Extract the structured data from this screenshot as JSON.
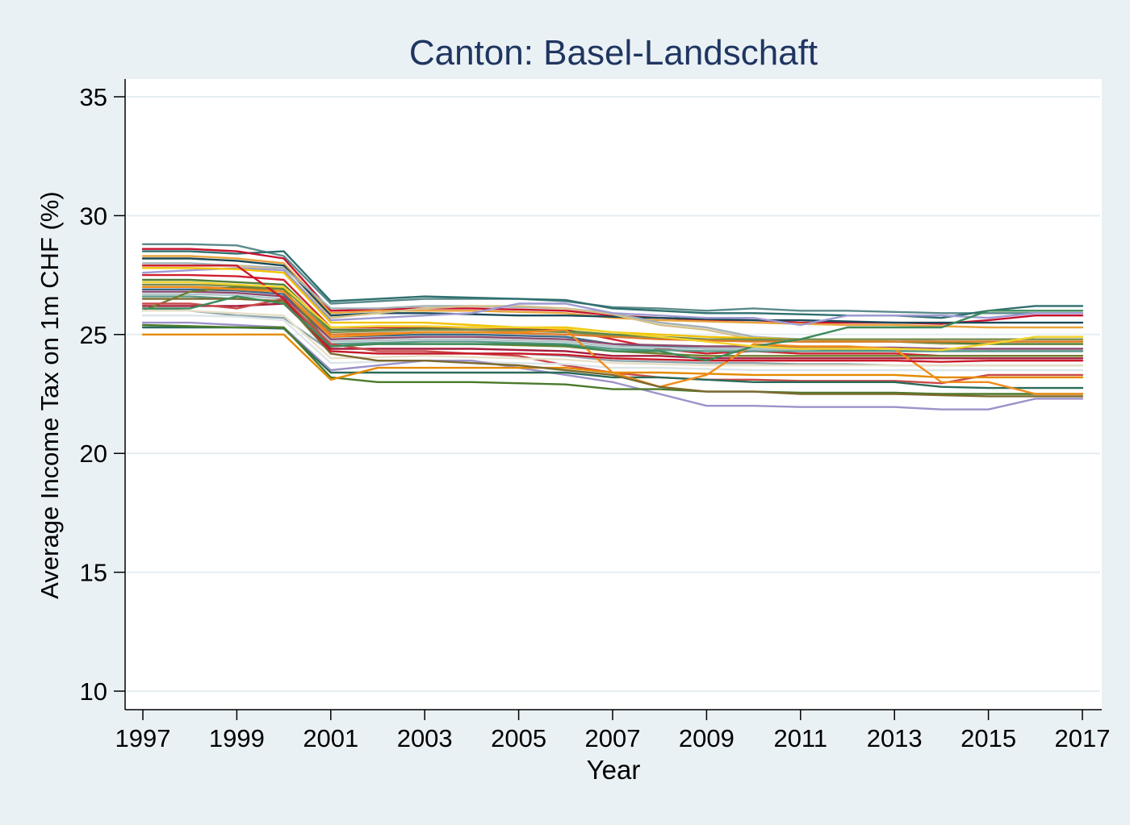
{
  "chart_data": {
    "type": "line",
    "title": "Canton: Basel-Landschaft",
    "xlabel": "Year",
    "ylabel": "Average Income Tax on 1m CHF (%)",
    "xlim": [
      1997,
      2017
    ],
    "ylim": [
      10,
      35
    ],
    "x_ticks": [
      "1997",
      "1999",
      "2001",
      "2003",
      "2005",
      "2007",
      "2009",
      "2011",
      "2013",
      "2015",
      "2017"
    ],
    "y_ticks": [
      "10",
      "15",
      "20",
      "25",
      "30",
      "35"
    ],
    "grid": true,
    "legend": "none",
    "x": [
      1997,
      1998,
      1999,
      2000,
      2001,
      2002,
      2003,
      2004,
      2005,
      2006,
      2007,
      2008,
      2009,
      2010,
      2011,
      2012,
      2013,
      2014,
      2015,
      2016,
      2017
    ],
    "series": [
      {
        "color": "#5b8a8a",
        "values": [
          28.8,
          28.8,
          28.75,
          28.3,
          26.3,
          26.4,
          26.5,
          26.5,
          26.5,
          26.4,
          26.15,
          26.1,
          26.0,
          26.1,
          26.0,
          26.0,
          25.95,
          25.9,
          25.9,
          25.9,
          25.9
        ]
      },
      {
        "color": "#2f6f6f",
        "values": [
          28.5,
          28.5,
          28.4,
          28.5,
          26.4,
          26.5,
          26.6,
          26.55,
          26.5,
          26.45,
          26.1,
          26.0,
          25.9,
          25.9,
          25.85,
          25.8,
          25.8,
          25.7,
          26.0,
          26.2,
          26.2
        ]
      },
      {
        "color": "#c8102e",
        "values": [
          28.6,
          28.6,
          28.5,
          28.2,
          26.0,
          26.05,
          26.1,
          26.1,
          26.05,
          26.0,
          25.8,
          25.7,
          25.6,
          25.6,
          25.5,
          25.5,
          25.5,
          25.45,
          25.6,
          25.8,
          25.8
        ]
      },
      {
        "color": "#e8a33d",
        "values": [
          28.3,
          28.3,
          28.2,
          28.0,
          25.9,
          26.0,
          26.0,
          26.0,
          25.95,
          25.9,
          25.7,
          25.6,
          25.55,
          25.5,
          25.45,
          25.4,
          25.4,
          25.35,
          25.3,
          25.3,
          25.3
        ]
      },
      {
        "color": "#1a4a5a",
        "values": [
          28.2,
          28.2,
          28.1,
          27.9,
          25.8,
          25.9,
          25.9,
          25.85,
          25.8,
          25.8,
          25.75,
          25.7,
          25.65,
          25.6,
          25.6,
          25.55,
          25.5,
          25.5,
          25.5,
          25.5,
          25.5
        ]
      },
      {
        "color": "#a3b0b5",
        "values": [
          28.0,
          28.0,
          27.9,
          27.8,
          26.1,
          26.1,
          26.2,
          26.2,
          26.15,
          26.1,
          25.9,
          25.5,
          25.3,
          24.9,
          24.8,
          24.8,
          24.8,
          24.7,
          24.7,
          24.7,
          24.7
        ]
      },
      {
        "color": "#d4c08a",
        "values": [
          27.9,
          27.9,
          27.9,
          27.7,
          25.7,
          25.9,
          26.1,
          26.2,
          26.2,
          26.1,
          25.85,
          25.4,
          25.2,
          24.8,
          24.7,
          24.7,
          24.7,
          24.6,
          24.6,
          24.6,
          24.6
        ]
      },
      {
        "color": "#9e9ad1",
        "values": [
          27.6,
          27.7,
          27.8,
          27.7,
          25.6,
          25.7,
          25.8,
          25.9,
          26.3,
          26.3,
          25.9,
          25.8,
          25.7,
          25.7,
          25.4,
          25.8,
          25.8,
          25.8,
          25.7,
          25.9,
          25.9
        ]
      },
      {
        "color": "#f2c200",
        "values": [
          27.8,
          27.8,
          27.75,
          27.6,
          25.5,
          25.5,
          25.5,
          25.4,
          25.3,
          25.3,
          25.1,
          25.0,
          24.9,
          24.85,
          24.8,
          24.75,
          24.7,
          24.7,
          24.7,
          24.7,
          24.7
        ]
      },
      {
        "color": "#d0202e",
        "values": [
          27.5,
          27.5,
          27.45,
          27.3,
          25.3,
          25.3,
          25.3,
          25.3,
          25.25,
          25.2,
          24.8,
          24.4,
          24.2,
          24.3,
          24.2,
          24.2,
          24.2,
          24.1,
          24.1,
          24.1,
          24.1
        ]
      },
      {
        "color": "#4f7f3a",
        "values": [
          27.3,
          27.3,
          27.2,
          27.1,
          25.2,
          25.2,
          25.25,
          25.2,
          25.2,
          25.15,
          25.0,
          24.9,
          24.8,
          24.75,
          24.7,
          24.7,
          24.7,
          24.65,
          24.6,
          24.6,
          24.6
        ]
      },
      {
        "color": "#7a8f52",
        "values": [
          27.1,
          27.1,
          27.05,
          26.95,
          25.1,
          25.15,
          25.2,
          25.2,
          25.15,
          25.1,
          24.95,
          24.85,
          24.8,
          24.8,
          24.8,
          24.8,
          24.8,
          24.8,
          24.8,
          24.8,
          24.8
        ]
      },
      {
        "color": "#e07b2a",
        "values": [
          27.0,
          27.0,
          26.95,
          26.8,
          25.0,
          25.05,
          25.1,
          25.1,
          25.05,
          25.0,
          24.9,
          24.8,
          24.75,
          24.7,
          24.7,
          24.7,
          24.7,
          24.7,
          24.7,
          24.7,
          24.7
        ]
      },
      {
        "color": "#3a6b8a",
        "values": [
          26.9,
          26.9,
          26.85,
          26.7,
          24.9,
          24.95,
          25.0,
          25.0,
          24.95,
          24.9,
          24.6,
          24.5,
          24.4,
          24.4,
          24.4,
          24.35,
          24.3,
          24.3,
          24.3,
          24.3,
          24.3
        ]
      },
      {
        "color": "#8c4a6e",
        "values": [
          26.8,
          26.8,
          26.75,
          26.6,
          24.8,
          24.85,
          24.9,
          24.9,
          24.85,
          24.8,
          24.6,
          24.55,
          24.5,
          24.5,
          24.45,
          24.45,
          24.45,
          24.4,
          24.4,
          24.4,
          24.4
        ]
      },
      {
        "color": "#b0c4c8",
        "values": [
          26.7,
          26.7,
          26.65,
          26.5,
          24.7,
          24.75,
          24.8,
          24.8,
          24.75,
          24.7,
          24.5,
          24.45,
          24.4,
          24.4,
          24.4,
          24.4,
          24.4,
          24.35,
          24.3,
          24.3,
          24.3
        ]
      },
      {
        "color": "#5d9b8c",
        "values": [
          26.6,
          26.6,
          26.5,
          26.4,
          24.6,
          24.65,
          24.7,
          24.7,
          24.65,
          24.6,
          24.4,
          24.35,
          24.3,
          24.3,
          24.3,
          24.3,
          24.3,
          24.3,
          24.3,
          24.3,
          24.3
        ]
      },
      {
        "color": "#a61c3c",
        "values": [
          26.2,
          26.2,
          26.2,
          26.3,
          24.4,
          24.4,
          24.4,
          24.4,
          24.35,
          24.3,
          24.1,
          24.1,
          24.0,
          24.0,
          24.0,
          24.0,
          24.0,
          24.0,
          24.0,
          24.0,
          24.0
        ]
      },
      {
        "color": "#6e7f2f",
        "values": [
          26.0,
          26.8,
          27.0,
          26.9,
          24.5,
          24.6,
          24.6,
          24.6,
          24.55,
          24.5,
          24.3,
          24.2,
          24.1,
          24.1,
          24.1,
          24.1,
          24.1,
          24.1,
          24.1,
          24.1,
          24.1
        ]
      },
      {
        "color": "#8ea5ad",
        "values": [
          26.1,
          26.0,
          25.8,
          25.7,
          24.3,
          24.2,
          24.2,
          24.2,
          24.2,
          24.1,
          23.9,
          23.85,
          23.8,
          23.8,
          23.75,
          23.75,
          23.7,
          23.7,
          23.7,
          23.7,
          23.7
        ]
      },
      {
        "color": "#c94a4a",
        "values": [
          26.3,
          26.3,
          26.1,
          26.5,
          24.6,
          24.3,
          24.3,
          24.2,
          24.1,
          23.7,
          23.4,
          23.2,
          23.1,
          23.1,
          23.05,
          23.05,
          23.05,
          22.95,
          23.3,
          23.3,
          23.3
        ]
      },
      {
        "color": "#e8e0c8",
        "values": [
          26.0,
          26.0,
          25.9,
          25.8,
          24.0,
          24.05,
          24.1,
          24.05,
          24.0,
          23.95,
          23.8,
          23.75,
          23.7,
          23.7,
          23.7,
          23.7,
          23.7,
          23.7,
          23.7,
          23.7,
          23.7
        ]
      },
      {
        "color": "#dce5e8",
        "values": [
          25.8,
          25.8,
          25.75,
          25.6,
          23.8,
          23.85,
          23.9,
          23.85,
          23.8,
          23.75,
          23.6,
          23.6,
          23.55,
          23.5,
          23.5,
          23.5,
          23.5,
          23.5,
          23.5,
          23.5,
          23.5
        ]
      },
      {
        "color": "#9d92c9",
        "values": [
          25.5,
          25.5,
          25.4,
          25.3,
          23.5,
          23.7,
          23.9,
          23.9,
          23.6,
          23.3,
          23.0,
          22.5,
          22.0,
          22.0,
          21.95,
          21.95,
          21.95,
          21.85,
          21.85,
          22.3,
          22.3
        ]
      },
      {
        "color": "#2a6b5a",
        "values": [
          25.3,
          25.3,
          25.3,
          25.25,
          23.4,
          23.4,
          23.4,
          23.4,
          23.4,
          23.4,
          23.2,
          23.2,
          23.1,
          23.0,
          23.0,
          23.0,
          23.0,
          22.8,
          22.75,
          22.75,
          22.75
        ]
      },
      {
        "color": "#4a7a2a",
        "values": [
          25.4,
          25.35,
          25.3,
          25.3,
          23.2,
          23.0,
          23.0,
          23.0,
          22.95,
          22.9,
          22.7,
          22.7,
          22.6,
          22.6,
          22.55,
          22.55,
          22.55,
          22.5,
          22.5,
          22.5,
          22.5
        ]
      },
      {
        "color": "#e58a00",
        "values": [
          25.0,
          25.0,
          25.0,
          25.0,
          23.1,
          23.6,
          23.6,
          23.6,
          23.6,
          23.6,
          23.4,
          23.4,
          23.35,
          23.3,
          23.3,
          23.3,
          23.3,
          23.2,
          23.2,
          23.2,
          23.2
        ]
      },
      {
        "color": "#f08c1a",
        "values": [
          27.0,
          27.0,
          26.9,
          26.8,
          24.9,
          25.0,
          25.1,
          25.1,
          25.1,
          25.2,
          23.4,
          22.8,
          23.3,
          24.6,
          24.5,
          24.5,
          24.4,
          23.0,
          23.0,
          22.5,
          22.5
        ]
      },
      {
        "color": "#7b6a2f",
        "values": [
          26.5,
          26.5,
          26.5,
          26.4,
          24.2,
          23.9,
          23.9,
          23.8,
          23.7,
          23.5,
          23.3,
          22.8,
          22.6,
          22.6,
          22.5,
          22.5,
          22.5,
          22.45,
          22.4,
          22.4,
          22.4
        ]
      },
      {
        "color": "#c91a2a",
        "values": [
          27.9,
          27.9,
          27.9,
          26.5,
          24.3,
          24.2,
          24.2,
          24.2,
          24.2,
          24.15,
          24.0,
          23.95,
          23.9,
          23.9,
          23.9,
          23.9,
          23.9,
          23.85,
          23.9,
          23.9,
          23.9
        ]
      },
      {
        "color": "#3d8a5a",
        "values": [
          26.1,
          26.1,
          26.6,
          26.3,
          24.5,
          24.6,
          24.6,
          24.6,
          24.6,
          24.55,
          24.3,
          24.3,
          23.9,
          24.5,
          24.8,
          25.3,
          25.3,
          25.3,
          26.0,
          26.0,
          26.0
        ]
      },
      {
        "color": "#f2d32c",
        "values": [
          27.2,
          27.2,
          27.1,
          27.0,
          25.3,
          25.35,
          25.35,
          25.3,
          25.3,
          25.25,
          25.1,
          24.9,
          24.7,
          24.5,
          24.4,
          24.4,
          24.4,
          24.35,
          24.6,
          24.9,
          24.9
        ]
      }
    ]
  }
}
